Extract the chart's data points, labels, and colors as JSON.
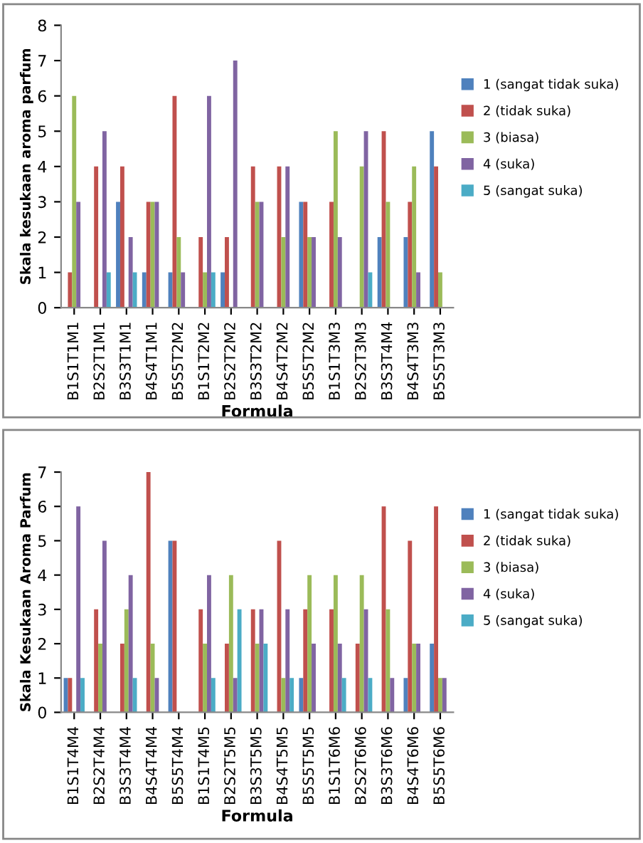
{
  "chart_data": [
    {
      "type": "bar",
      "xlabel": "Formula",
      "ylabel": "Skala kesukaan aroma parfum",
      "ylim": [
        0,
        8
      ],
      "yticks": [
        0,
        1,
        2,
        3,
        4,
        5,
        6,
        7,
        8
      ],
      "grid": false,
      "legend": "right",
      "categories": [
        "B1S1T1M1",
        "B2S2T1M1",
        "B3S3T1M1",
        "B4S4T1M1",
        "B5S5T2M2",
        "B1S1T2M2",
        "B2S2T2M2",
        "B3S3T2M2",
        "B4S4T2M2",
        "B5S5T2M2",
        "B1S1T3M3",
        "B2S2T3M3",
        "B3S3T4M4",
        "B4S4T3M3",
        "B5S5T3M3"
      ],
      "series": [
        {
          "name": "1 (sangat tidak suka)",
          "color": "#4f81bd",
          "values": [
            0,
            0,
            3,
            1,
            1,
            0,
            1,
            0,
            0,
            3,
            0,
            0,
            2,
            2,
            5
          ]
        },
        {
          "name": "2 (tidak suka)",
          "color": "#c0504d",
          "values": [
            1,
            4,
            4,
            3,
            6,
            2,
            2,
            4,
            4,
            3,
            3,
            0,
            5,
            3,
            4
          ]
        },
        {
          "name": "3 (biasa)",
          "color": "#9bbb59",
          "values": [
            6,
            0,
            0,
            3,
            2,
            1,
            0,
            3,
            2,
            2,
            5,
            4,
            3,
            4,
            1
          ]
        },
        {
          "name": "4 (suka)",
          "color": "#8064a2",
          "values": [
            3,
            5,
            2,
            3,
            1,
            6,
            7,
            3,
            4,
            2,
            2,
            5,
            0,
            1,
            0
          ]
        },
        {
          "name": "5 (sangat suka)",
          "color": "#4bacc6",
          "values": [
            0,
            1,
            1,
            0,
            0,
            1,
            0,
            0,
            0,
            0,
            0,
            1,
            0,
            0,
            0
          ]
        }
      ]
    },
    {
      "type": "bar",
      "xlabel": "Formula",
      "ylabel": "Skala Kesukaan Aroma Parfum",
      "ylim": [
        0,
        7
      ],
      "yticks": [
        0,
        1,
        2,
        3,
        4,
        5,
        6,
        7
      ],
      "grid": false,
      "legend": "right",
      "categories": [
        "B1S1T4M4",
        "B2S2T4M4",
        "B3S3T4M4",
        "B4S4T4M4",
        "B5S5T4M4",
        "B1S1T4M5",
        "B2S2T5M5",
        "B3S3T5M5",
        "B4S4T5M5",
        "B5S5T5M5",
        "B1S1T6M6",
        "B2S2T6M6",
        "B3S3T6M6",
        "B4S4T6M6",
        "B5S5T6M6"
      ],
      "series": [
        {
          "name": "1 (sangat tidak suka)",
          "color": "#4f81bd",
          "values": [
            1,
            0,
            0,
            0,
            5,
            0,
            0,
            0,
            0,
            1,
            0,
            0,
            0,
            1,
            2
          ]
        },
        {
          "name": "2 (tidak suka)",
          "color": "#c0504d",
          "values": [
            1,
            3,
            2,
            7,
            5,
            3,
            2,
            3,
            5,
            3,
            3,
            2,
            6,
            5,
            6
          ]
        },
        {
          "name": "3 (biasa)",
          "color": "#9bbb59",
          "values": [
            0,
            2,
            3,
            2,
            0,
            2,
            4,
            2,
            1,
            4,
            4,
            4,
            3,
            2,
            1
          ]
        },
        {
          "name": "4 (suka)",
          "color": "#8064a2",
          "values": [
            6,
            5,
            4,
            1,
            0,
            4,
            1,
            3,
            3,
            2,
            2,
            3,
            1,
            2,
            1
          ]
        },
        {
          "name": "5 (sangat suka)",
          "color": "#4bacc6",
          "values": [
            1,
            0,
            1,
            0,
            0,
            1,
            3,
            2,
            1,
            0,
            1,
            1,
            0,
            0,
            0
          ]
        }
      ]
    }
  ]
}
